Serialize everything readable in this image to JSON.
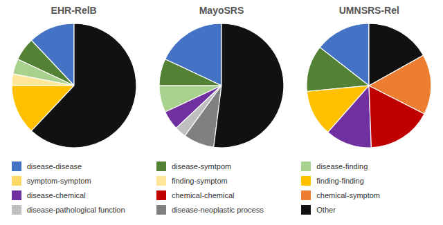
{
  "chart_data": [
    {
      "type": "pie",
      "title": "EHR-RelB",
      "categories": [
        "disease-disease",
        "disease-symtpom",
        "disease-finding",
        "finding-symptom",
        "finding-finding",
        "Other"
      ],
      "values": [
        12,
        6,
        4,
        3,
        13,
        62
      ],
      "colors": [
        "#4472C4",
        "#548235",
        "#A9D18E",
        "#FFE699",
        "#FFC000",
        "#111111"
      ]
    },
    {
      "type": "pie",
      "title": "MayoSRS",
      "categories": [
        "disease-disease",
        "disease-symtpom",
        "disease-finding",
        "disease-chemical",
        "disease-pathological function",
        "disease-neoplastic process",
        "Other"
      ],
      "values": [
        18,
        7,
        7,
        5,
        3,
        8,
        52
      ],
      "colors": [
        "#4472C4",
        "#548235",
        "#A9D18E",
        "#7030A0",
        "#BFBFBF",
        "#808080",
        "#111111"
      ]
    },
    {
      "type": "pie",
      "title": "UMNSRS-Rel",
      "categories": [
        "disease-disease",
        "disease-symtpom",
        "finding-finding",
        "disease-chemical",
        "chemical-chemical",
        "chemical-symptom",
        "Other"
      ],
      "values": [
        12,
        10,
        10,
        10,
        14,
        13,
        14
      ],
      "colors": [
        "#4472C4",
        "#548235",
        "#FFC000",
        "#7030A0",
        "#C00000",
        "#ED7D31",
        "#111111"
      ]
    }
  ],
  "legend_items": [
    {
      "name": "disease-disease",
      "color": "#4472C4"
    },
    {
      "name": "symptom-symptom",
      "color": "#FFD966"
    },
    {
      "name": "disease-chemical",
      "color": "#7030A0"
    },
    {
      "name": "disease-pathological function",
      "color": "#BFBFBF"
    },
    {
      "name": "disease-symtpom",
      "color": "#548235"
    },
    {
      "name": "finding-symptom",
      "color": "#FFE699"
    },
    {
      "name": "chemical-chemical",
      "color": "#C00000"
    },
    {
      "name": "disease-neoplastic process",
      "color": "#808080"
    },
    {
      "name": "disease-finding",
      "color": "#A9D18E"
    },
    {
      "name": "finding-finding",
      "color": "#FFC000"
    },
    {
      "name": "chemical-symptom",
      "color": "#ED7D31"
    },
    {
      "name": "Other",
      "color": "#111111"
    }
  ]
}
